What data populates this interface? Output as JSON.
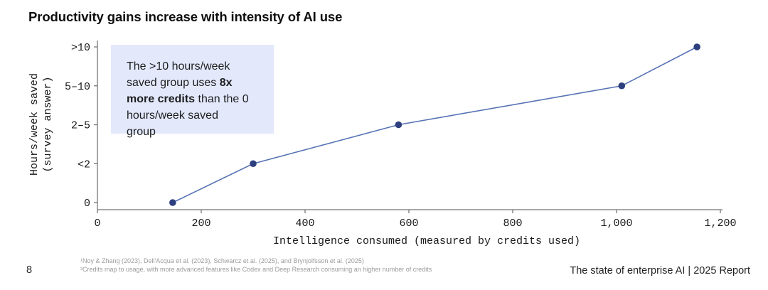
{
  "page": {
    "title": "Productivity gains increase with intensity of AI use",
    "page_number": "8",
    "footnotes": [
      "¹Noy & Zhang (2023), Dell'Acqua et al. (2023), Schwarcz et al. (2025), and Brynjolfsson et al. (2025)",
      "²Credits map to usage, with more advanced features like Codex and Deep Research consuming an higher number of credits"
    ],
    "footer_right": "The state of enterprise AI  |  2025 Report"
  },
  "annotation": {
    "pre": "The >10 hours/week saved group uses ",
    "bold": "8x more credits",
    "post": " than the 0 hours/week saved group",
    "bg_color": "#e3e9fb"
  },
  "chart_data": {
    "type": "line",
    "title": "Productivity gains increase with intensity of AI use",
    "xlabel": "Intelligence consumed (measured by credits used)",
    "ylabel": "Hours/week saved (survey answer)",
    "ylabel_lines": [
      "Hours/week saved",
      "(survey answer)"
    ],
    "y_categories": [
      "0",
      "<2",
      "2–5",
      "5–10",
      ">10"
    ],
    "x": [
      145,
      300,
      580,
      1010,
      1155
    ],
    "y": [
      "0",
      "<2",
      "2–5",
      "5–10",
      ">10"
    ],
    "xlim": [
      0,
      1200
    ],
    "x_ticks": [
      0,
      200,
      400,
      600,
      800,
      1000,
      1200
    ],
    "x_tick_labels": [
      "0",
      "200",
      "400",
      "600",
      "800",
      "1,000",
      "1,200"
    ],
    "grid": false,
    "legend": "none",
    "line_color": "#5673b5",
    "point_color": "#2d3f7e",
    "axis_color": "#757575"
  }
}
